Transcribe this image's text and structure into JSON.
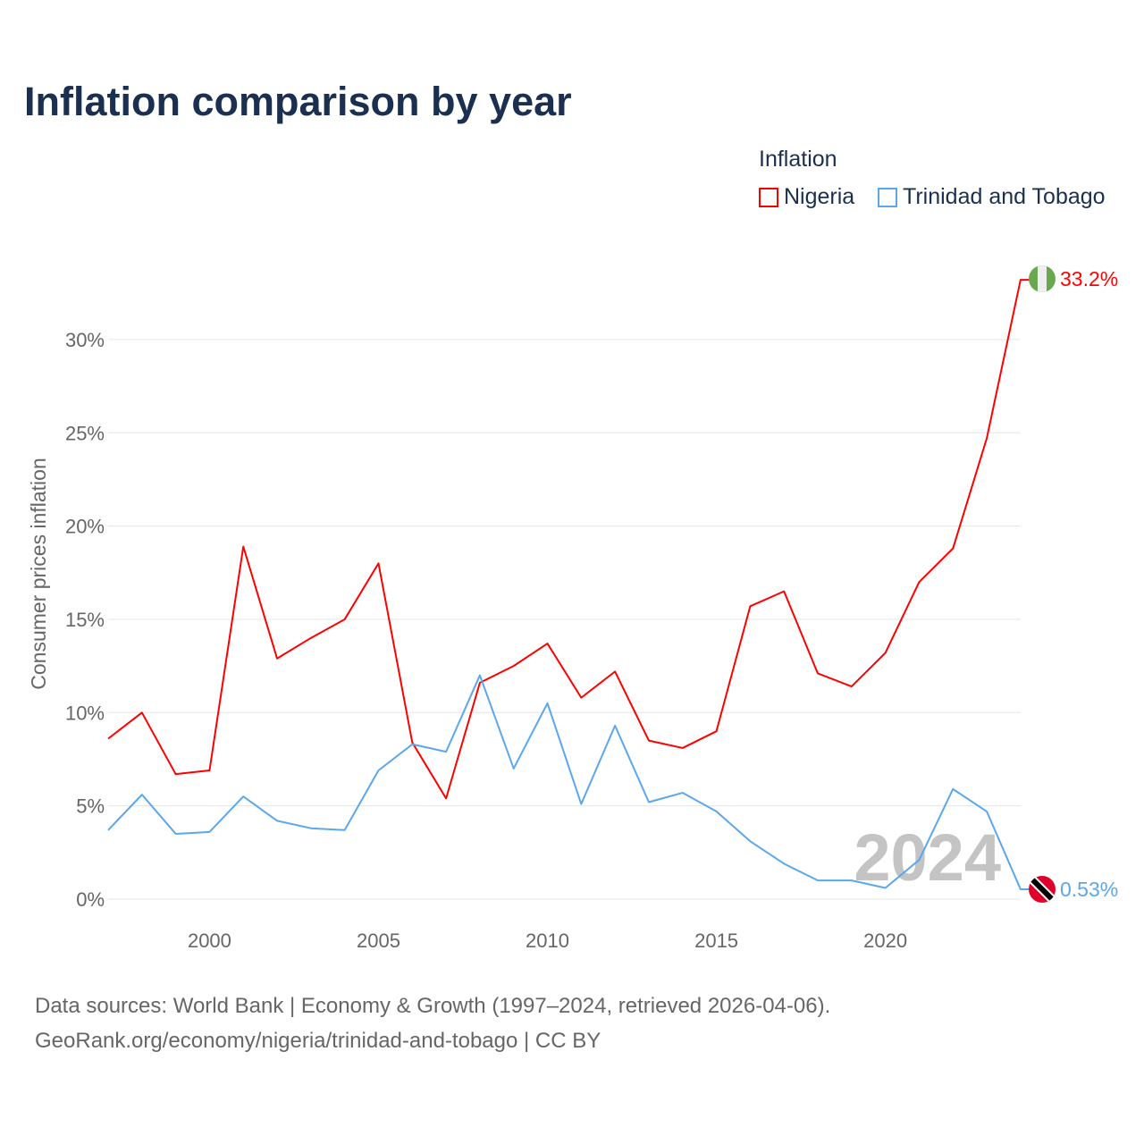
{
  "chart_data": {
    "type": "line",
    "title": "Inflation comparison by year",
    "legend_title": "Inflation",
    "legend_placement": "top-right",
    "xlabel": "",
    "ylabel": "Consumer prices inflation",
    "xlim": [
      1997,
      2024
    ],
    "ylim": [
      0,
      33.2
    ],
    "x_ticks": [
      "2000",
      "2005",
      "2010",
      "2015",
      "2020"
    ],
    "y_ticks": [
      "0%",
      "5%",
      "10%",
      "15%",
      "20%",
      "25%",
      "30%"
    ],
    "grid": true,
    "x": [
      1997,
      1998,
      1999,
      2000,
      2001,
      2002,
      2003,
      2004,
      2005,
      2006,
      2007,
      2008,
      2009,
      2010,
      2011,
      2012,
      2013,
      2014,
      2015,
      2016,
      2017,
      2018,
      2019,
      2020,
      2021,
      2022,
      2023,
      2024
    ],
    "series": [
      {
        "name": "Nigeria",
        "color": "#ff0000",
        "end_label": "33.2%",
        "flag": "nigeria-flag",
        "values": [
          8.6,
          10.0,
          6.7,
          6.9,
          18.9,
          12.9,
          14.0,
          15.0,
          18.0,
          8.4,
          5.4,
          11.6,
          12.5,
          13.7,
          10.8,
          12.2,
          8.5,
          8.1,
          9.0,
          15.7,
          16.5,
          12.1,
          11.4,
          13.2,
          17.0,
          18.8,
          24.7,
          33.2
        ]
      },
      {
        "name": "Trinidad and Tobago",
        "color": "#5ba7ee",
        "end_label": "0.53%",
        "flag": "trinidad-flag",
        "values": [
          3.7,
          5.6,
          3.5,
          3.6,
          5.5,
          4.2,
          3.8,
          3.7,
          6.9,
          8.3,
          7.9,
          12.0,
          7.0,
          10.5,
          5.1,
          9.3,
          5.2,
          5.7,
          4.7,
          3.1,
          1.9,
          1.0,
          1.0,
          0.6,
          2.1,
          5.9,
          4.7,
          0.53
        ]
      }
    ],
    "annotation": "2024"
  },
  "source": {
    "line1": "Data sources: World Bank | Economy & Growth (1997–2024, retrieved 2026-04-06).",
    "line2": "GeoRank.org/economy/nigeria/trinidad-and-tobago | CC BY"
  }
}
